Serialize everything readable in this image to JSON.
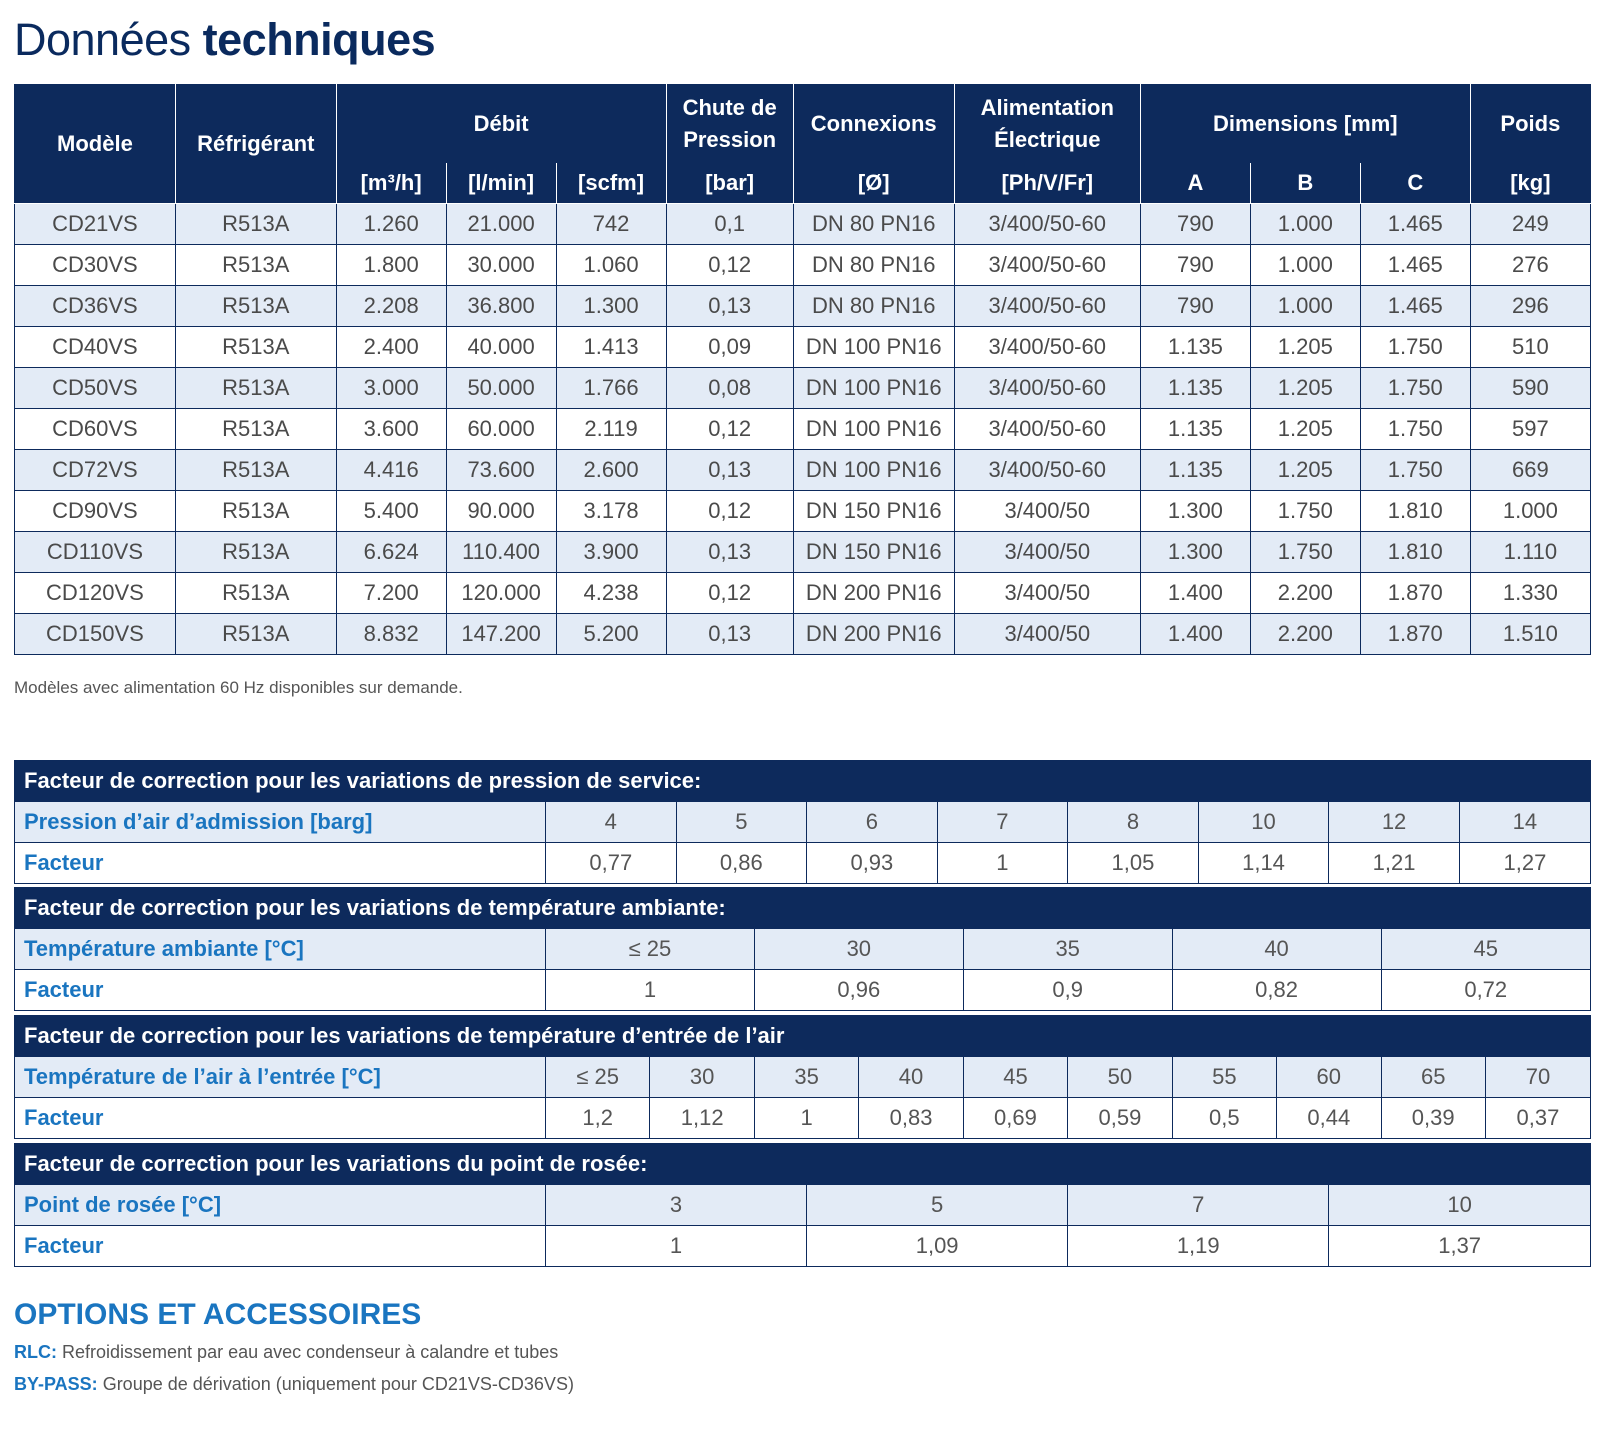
{
  "title": {
    "light": "Données",
    "bold": "techniques"
  },
  "main_table": {
    "headers": {
      "model": "Modèle",
      "refrigerant": "Réfrigérant",
      "flow": "Débit",
      "flow_units": [
        "[m³/h]",
        "[l/min]",
        "[scfm]"
      ],
      "pressure_drop": "Chute de Pression",
      "pressure_drop_unit": "[bar]",
      "connections": "Connexions",
      "connections_unit": "[Ø]",
      "power": "Alimentation Électrique",
      "power_unit": "[Ph/V/Fr]",
      "dimensions": "Dimensions [mm]",
      "dimensions_cols": [
        "A",
        "B",
        "C"
      ],
      "weight": "Poids",
      "weight_unit": "[kg]"
    },
    "rows": [
      [
        "CD21VS",
        "R513A",
        "1.260",
        "21.000",
        "742",
        "0,1",
        "DN 80 PN16",
        "3/400/50-60",
        "790",
        "1.000",
        "1.465",
        "249"
      ],
      [
        "CD30VS",
        "R513A",
        "1.800",
        "30.000",
        "1.060",
        "0,12",
        "DN 80 PN16",
        "3/400/50-60",
        "790",
        "1.000",
        "1.465",
        "276"
      ],
      [
        "CD36VS",
        "R513A",
        "2.208",
        "36.800",
        "1.300",
        "0,13",
        "DN 80 PN16",
        "3/400/50-60",
        "790",
        "1.000",
        "1.465",
        "296"
      ],
      [
        "CD40VS",
        "R513A",
        "2.400",
        "40.000",
        "1.413",
        "0,09",
        "DN 100 PN16",
        "3/400/50-60",
        "1.135",
        "1.205",
        "1.750",
        "510"
      ],
      [
        "CD50VS",
        "R513A",
        "3.000",
        "50.000",
        "1.766",
        "0,08",
        "DN 100 PN16",
        "3/400/50-60",
        "1.135",
        "1.205",
        "1.750",
        "590"
      ],
      [
        "CD60VS",
        "R513A",
        "3.600",
        "60.000",
        "2.119",
        "0,12",
        "DN 100 PN16",
        "3/400/50-60",
        "1.135",
        "1.205",
        "1.750",
        "597"
      ],
      [
        "CD72VS",
        "R513A",
        "4.416",
        "73.600",
        "2.600",
        "0,13",
        "DN 100 PN16",
        "3/400/50-60",
        "1.135",
        "1.205",
        "1.750",
        "669"
      ],
      [
        "CD90VS",
        "R513A",
        "5.400",
        "90.000",
        "3.178",
        "0,12",
        "DN 150 PN16",
        "3/400/50",
        "1.300",
        "1.750",
        "1.810",
        "1.000"
      ],
      [
        "CD110VS",
        "R513A",
        "6.624",
        "110.400",
        "3.900",
        "0,13",
        "DN 150 PN16",
        "3/400/50",
        "1.300",
        "1.750",
        "1.810",
        "1.110"
      ],
      [
        "CD120VS",
        "R513A",
        "7.200",
        "120.000",
        "4.238",
        "0,12",
        "DN 200 PN16",
        "3/400/50",
        "1.400",
        "2.200",
        "1.870",
        "1.330"
      ],
      [
        "CD150VS",
        "R513A",
        "8.832",
        "147.200",
        "5.200",
        "0,13",
        "DN 200 PN16",
        "3/400/50",
        "1.400",
        "2.200",
        "1.870",
        "1.510"
      ]
    ]
  },
  "footnote": "Modèles avec alimentation 60 Hz disponibles sur demande.",
  "corrections": [
    {
      "heading": "Facteur de correction pour les variations de pression de service:",
      "row1_label": "Pression d’air d’admission [barg]",
      "row1": [
        "4",
        "5",
        "6",
        "7",
        "8",
        "10",
        "12",
        "14"
      ],
      "row2_label": "Facteur",
      "row2": [
        "0,77",
        "0,86",
        "0,93",
        "1",
        "1,05",
        "1,14",
        "1,21",
        "1,27"
      ]
    },
    {
      "heading": "Facteur de correction pour les variations de température ambiante:",
      "row1_label": "Température ambiante [°C]",
      "row1": [
        "≤ 25",
        "30",
        "35",
        "40",
        "45"
      ],
      "row2_label": "Facteur",
      "row2": [
        "1",
        "0,96",
        "0,9",
        "0,82",
        "0,72"
      ]
    },
    {
      "heading": "Facteur de correction pour les variations de température d’entrée de l’air",
      "row1_label": "Température de l’air à l’entrée [°C]",
      "row1": [
        "≤ 25",
        "30",
        "35",
        "40",
        "45",
        "50",
        "55",
        "60",
        "65",
        "70"
      ],
      "row2_label": "Facteur",
      "row2": [
        "1,2",
        "1,12",
        "1",
        "0,83",
        "0,69",
        "0,59",
        "0,5",
        "0,44",
        "0,39",
        "0,37"
      ]
    },
    {
      "heading": "Facteur de correction pour les variations du point de rosée:",
      "row1_label": "Point de rosée [°C]",
      "row1": [
        "3",
        "5",
        "7",
        "10"
      ],
      "row2_label": "Facteur",
      "row2": [
        "1",
        "1,09",
        "1,19",
        "1,37"
      ]
    }
  ],
  "options": {
    "title": "OPTIONS ET ACCESSOIRES",
    "items": [
      {
        "key": "RLC:",
        "text": " Refroidissement par eau avec condenseur à calandre et tubes"
      },
      {
        "key": "BY-PASS:",
        "text": " Groupe de dérivation (uniquement pour CD21VS-CD36VS)"
      }
    ]
  }
}
